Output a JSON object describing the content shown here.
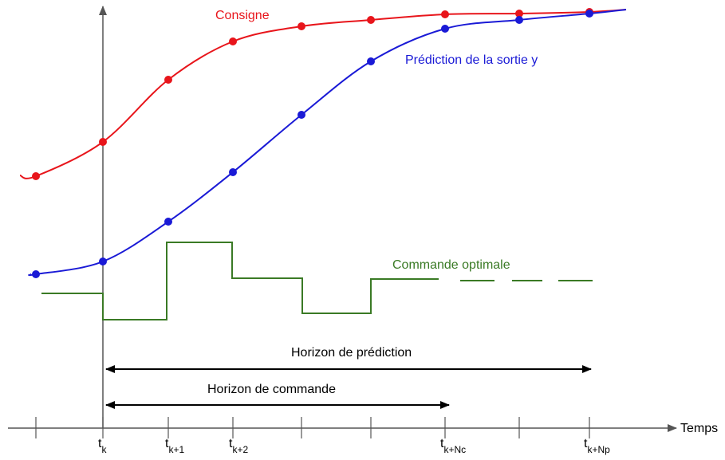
{
  "labels": {
    "setpoint": "Consigne",
    "prediction": "Prédiction de la sortie y",
    "command": "Commande optimale",
    "prediction_horizon": "Horizon de prédiction",
    "command_horizon": "Horizon de commande",
    "time_axis": "Temps"
  },
  "ticks": [
    {
      "base": "t",
      "sub": "k"
    },
    {
      "base": "t",
      "sub": "k+1"
    },
    {
      "base": "t",
      "sub": "k+2"
    },
    {
      "base": "t",
      "sub": "k+Nc"
    },
    {
      "base": "t",
      "sub": "k+Np"
    }
  ]
}
